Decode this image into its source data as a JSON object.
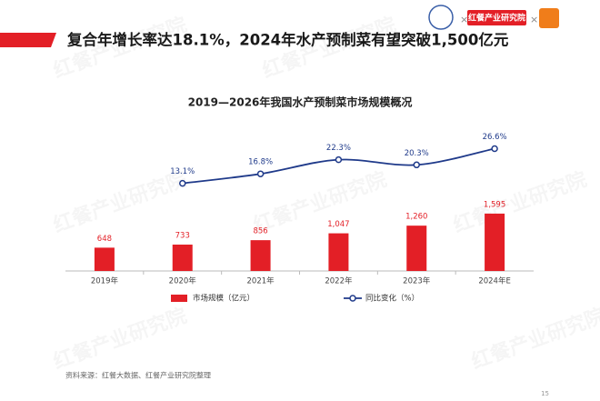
{
  "header": {
    "title": "复合年增长率达18.1%，2024年水产预制菜有望突破1,500亿元",
    "logo": "红餐产业研究院"
  },
  "watermark": "红餐产业研究院",
  "chart_data": {
    "type": "bar",
    "title": "2019—2026年我国水产预制菜市场规模概况",
    "categories": [
      "2019年",
      "2020年",
      "2021年",
      "2022年",
      "2023年",
      "2024年E"
    ],
    "series": [
      {
        "name": "市场规模（亿元）",
        "type": "bar",
        "color": "#e31f26",
        "values": [
          648,
          733,
          856,
          1047,
          1260,
          1595
        ],
        "value_labels": [
          "648",
          "733",
          "856",
          "1,047",
          "1,260",
          "1,595"
        ]
      },
      {
        "name": "同比变化（%）",
        "type": "line",
        "axis": "y2",
        "color": "#1f3a8a",
        "values": [
          null,
          13.1,
          16.8,
          22.3,
          20.3,
          26.6
        ],
        "value_labels": [
          null,
          "13.1%",
          "16.8%",
          "22.3%",
          "20.3%",
          "26.6%"
        ]
      }
    ],
    "ylim": [
      0,
      4500
    ],
    "y2lim": [
      -21,
      42
    ],
    "smooth": true
  },
  "footer": {
    "source": "资料来源：红餐大数据、红餐产业研究院整理",
    "page": "15"
  }
}
